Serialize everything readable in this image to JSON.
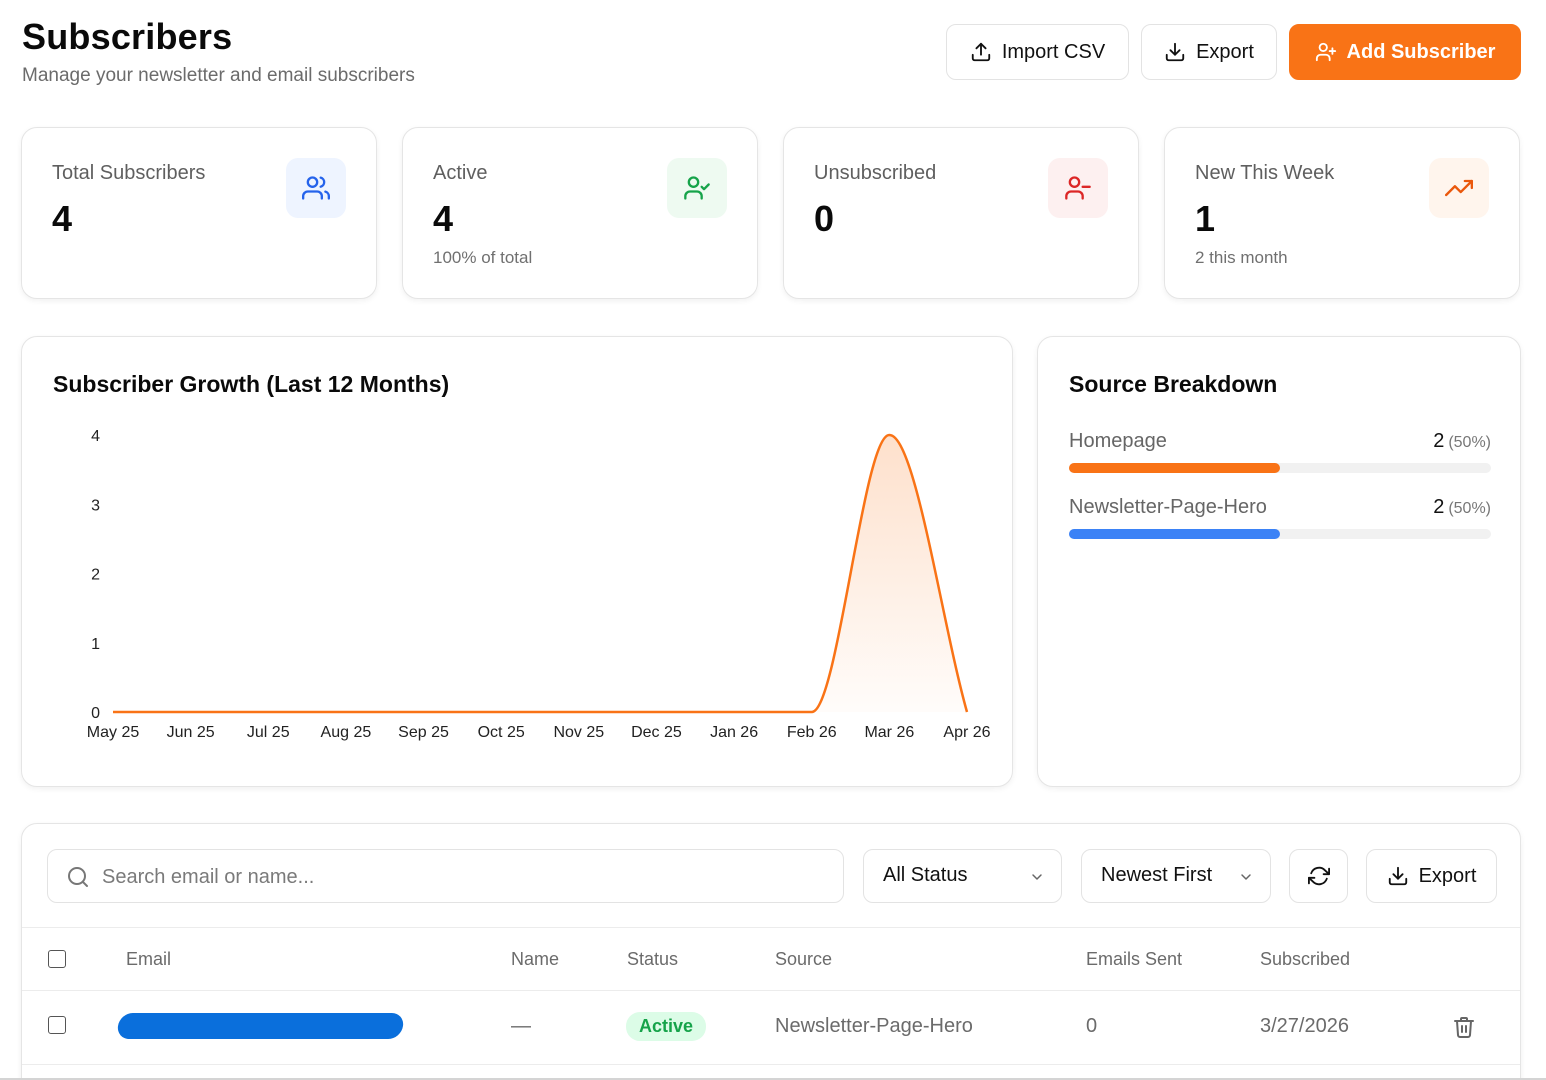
{
  "header": {
    "title": "Subscribers",
    "subtitle": "Manage your newsletter and email subscribers",
    "import_label": "Import CSV",
    "export_label": "Export",
    "add_label": "Add Subscriber"
  },
  "stats": [
    {
      "label": "Total Subscribers",
      "value": "4",
      "sub": "",
      "icon": "users-icon",
      "icon_color": "#2563eb",
      "icon_bg": "#eef4ff"
    },
    {
      "label": "Active",
      "value": "4",
      "sub": "100% of total",
      "icon": "user-check-icon",
      "icon_color": "#16a34a",
      "icon_bg": "#eefaf1"
    },
    {
      "label": "Unsubscribed",
      "value": "0",
      "sub": "",
      "icon": "user-minus-icon",
      "icon_color": "#dc2626",
      "icon_bg": "#fdf0f0"
    },
    {
      "label": "New This Week",
      "value": "1",
      "sub": "2 this month",
      "icon": "trending-up-icon",
      "icon_color": "#ea580c",
      "icon_bg": "#fff5ed"
    }
  ],
  "growth": {
    "title": "Subscriber Growth (Last 12 Months)",
    "chart_data": {
      "type": "area",
      "title": "Subscriber Growth (Last 12 Months)",
      "categories": [
        "May 25",
        "Jun 25",
        "Jul 25",
        "Aug 25",
        "Sep 25",
        "Oct 25",
        "Nov 25",
        "Dec 25",
        "Jan 26",
        "Feb 26",
        "Mar 26",
        "Apr 26"
      ],
      "values": [
        0,
        0,
        0,
        0,
        0,
        0,
        0,
        0,
        0,
        0,
        4,
        0
      ],
      "yticks": [
        "0",
        "1",
        "2",
        "3",
        "4"
      ],
      "ylim": [
        0,
        4
      ],
      "grid": false,
      "color": "#f97316"
    }
  },
  "sources": {
    "title": "Source Breakdown",
    "items": [
      {
        "name": "Homepage",
        "count": "2",
        "pct": "(50%)",
        "fraction": 0.5,
        "color": "#f97316"
      },
      {
        "name": "Newsletter-Page-Hero",
        "count": "2",
        "pct": "(50%)",
        "fraction": 0.5,
        "color": "#3b82f6"
      }
    ]
  },
  "toolbar": {
    "search_placeholder": "Search email or name...",
    "status_filter": "All Status",
    "sort": "Newest First",
    "export_label": "Export"
  },
  "table": {
    "columns": [
      "Email",
      "Name",
      "Status",
      "Source",
      "Emails Sent",
      "Subscribed"
    ],
    "rows": [
      {
        "name": "—",
        "status": "Active",
        "source": "Newsletter-Page-Hero",
        "emails_sent": "0",
        "subscribed": "3/27/2026"
      }
    ]
  }
}
